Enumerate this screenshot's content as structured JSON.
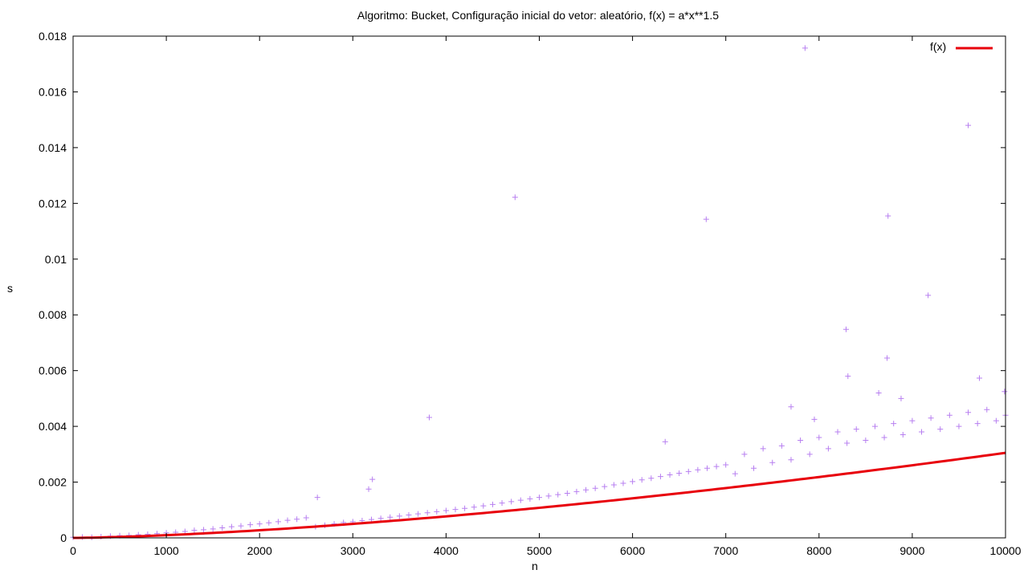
{
  "chart_data": {
    "type": "scatter",
    "title": "Algoritmo: Bucket, Configuração inicial do vetor: aleatório, f(x) = a*x**1.5",
    "xlabel": "n",
    "ylabel": "s",
    "xlim": [
      0,
      10000
    ],
    "ylim": [
      0,
      0.018
    ],
    "x_ticks": [
      "0",
      "1000",
      "2000",
      "3000",
      "4000",
      "5000",
      "6000",
      "7000",
      "8000",
      "9000",
      "10000"
    ],
    "y_ticks": [
      "0",
      "0.002",
      "0.004",
      "0.006",
      "0.008",
      "0.01",
      "0.012",
      "0.014",
      "0.016",
      "0.018"
    ],
    "grid": false,
    "legend_position": "top-right",
    "series": [
      {
        "kind": "points",
        "marker": "+",
        "color": "#b77ff0",
        "points": [
          [
            0,
            2e-05
          ],
          [
            100,
            3e-05
          ],
          [
            200,
            2e-05
          ],
          [
            300,
            4e-05
          ],
          [
            400,
            6e-05
          ],
          [
            500,
            8e-05
          ],
          [
            600,
            9e-05
          ],
          [
            700,
            0.00011
          ],
          [
            800,
            0.00013
          ],
          [
            900,
            0.00015
          ],
          [
            1000,
            0.00018
          ],
          [
            1100,
            0.0002
          ],
          [
            1200,
            0.00023
          ],
          [
            1300,
            0.00027
          ],
          [
            1400,
            0.00029
          ],
          [
            1500,
            0.00032
          ],
          [
            1600,
            0.00036
          ],
          [
            1700,
            0.0004
          ],
          [
            1800,
            0.00043
          ],
          [
            1900,
            0.00047
          ],
          [
            2000,
            0.0005
          ],
          [
            2100,
            0.00054
          ],
          [
            2200,
            0.00058
          ],
          [
            2300,
            0.00063
          ],
          [
            2400,
            0.00067
          ],
          [
            2500,
            0.00072
          ],
          [
            2600,
            0.0004
          ],
          [
            2700,
            0.00045
          ],
          [
            2800,
            0.0005
          ],
          [
            2900,
            0.00055
          ],
          [
            3000,
            0.00058
          ],
          [
            3100,
            0.00062
          ],
          [
            3200,
            0.00066
          ],
          [
            3300,
            0.0007
          ],
          [
            3400,
            0.00074
          ],
          [
            3500,
            0.00078
          ],
          [
            3600,
            0.00082
          ],
          [
            3700,
            0.00086
          ],
          [
            3800,
            0.0009
          ],
          [
            3900,
            0.00094
          ],
          [
            4000,
            0.00098
          ],
          [
            4100,
            0.00102
          ],
          [
            4200,
            0.00106
          ],
          [
            4300,
            0.0011
          ],
          [
            4400,
            0.00115
          ],
          [
            4500,
            0.0012
          ],
          [
            4600,
            0.00125
          ],
          [
            4700,
            0.0013
          ],
          [
            4800,
            0.00135
          ],
          [
            4900,
            0.0014
          ],
          [
            5000,
            0.00145
          ],
          [
            5100,
            0.0015
          ],
          [
            5200,
            0.00155
          ],
          [
            5300,
            0.0016
          ],
          [
            5400,
            0.00166
          ],
          [
            5500,
            0.00172
          ],
          [
            5600,
            0.00178
          ],
          [
            5700,
            0.00184
          ],
          [
            5800,
            0.0019
          ],
          [
            5900,
            0.00196
          ],
          [
            6000,
            0.00202
          ],
          [
            6100,
            0.00208
          ],
          [
            6200,
            0.00214
          ],
          [
            6300,
            0.0022
          ],
          [
            6400,
            0.00226
          ],
          [
            6500,
            0.00232
          ],
          [
            6600,
            0.00238
          ],
          [
            6700,
            0.00244
          ],
          [
            6800,
            0.0025
          ],
          [
            6900,
            0.00256
          ],
          [
            7000,
            0.00262
          ],
          [
            7100,
            0.0023
          ],
          [
            7200,
            0.003
          ],
          [
            7300,
            0.0025
          ],
          [
            7400,
            0.0032
          ],
          [
            7500,
            0.0027
          ],
          [
            7600,
            0.0033
          ],
          [
            7700,
            0.0028
          ],
          [
            7800,
            0.0035
          ],
          [
            7900,
            0.003
          ],
          [
            8000,
            0.0036
          ],
          [
            8100,
            0.0032
          ],
          [
            8200,
            0.0038
          ],
          [
            8300,
            0.0034
          ],
          [
            8400,
            0.0039
          ],
          [
            8500,
            0.0035
          ],
          [
            8600,
            0.004
          ],
          [
            8700,
            0.0036
          ],
          [
            8800,
            0.0041
          ],
          [
            8900,
            0.0037
          ],
          [
            9000,
            0.0042
          ],
          [
            9100,
            0.0038
          ],
          [
            9200,
            0.0043
          ],
          [
            9300,
            0.0039
          ],
          [
            9400,
            0.0044
          ],
          [
            9500,
            0.004
          ],
          [
            9600,
            0.0045
          ],
          [
            9700,
            0.0041
          ],
          [
            9800,
            0.0046
          ],
          [
            9900,
            0.0042
          ],
          [
            10000,
            0.0044
          ],
          [
            2620,
            0.00145
          ],
          [
            3170,
            0.00175
          ],
          [
            3210,
            0.0021
          ],
          [
            3820,
            0.00432
          ],
          [
            4740,
            0.01222
          ],
          [
            6350,
            0.00345
          ],
          [
            6790,
            0.01143
          ],
          [
            7700,
            0.0047
          ],
          [
            7850,
            0.01757
          ],
          [
            7950,
            0.00425
          ],
          [
            8290,
            0.00748
          ],
          [
            8310,
            0.0058
          ],
          [
            8640,
            0.0052
          ],
          [
            8730,
            0.00645
          ],
          [
            8740,
            0.01155
          ],
          [
            8880,
            0.005
          ],
          [
            9170,
            0.0087
          ],
          [
            9600,
            0.0148
          ],
          [
            9720,
            0.00573
          ],
          [
            9990,
            0.00525
          ]
        ]
      },
      {
        "kind": "line",
        "name": "f(x)",
        "color": "#e8000b",
        "formula": "a*x**1.5",
        "a": 3.05e-09
      }
    ]
  }
}
